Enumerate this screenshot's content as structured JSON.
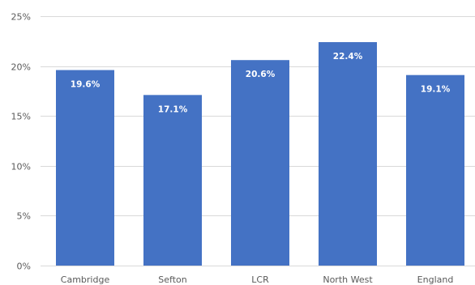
{
  "chart_data": {
    "type": "bar",
    "title": "",
    "xlabel": "",
    "ylabel": "",
    "categories": [
      "Cambridge",
      "Sefton",
      "LCR",
      "North West",
      "England"
    ],
    "values": [
      19.6,
      17.1,
      20.6,
      22.4,
      19.1
    ],
    "data_labels": [
      "19.6%",
      "17.1%",
      "20.6%",
      "22.4%",
      "19.1%"
    ],
    "ylim": [
      0,
      25
    ],
    "y_ticks": [
      0,
      5,
      10,
      15,
      20,
      25
    ],
    "y_tick_labels": [
      "0%",
      "5%",
      "10%",
      "15%",
      "20%",
      "25%"
    ],
    "grid": true,
    "legend": "none",
    "bar_color": "#4472c4",
    "label_color": "#ffffff"
  }
}
